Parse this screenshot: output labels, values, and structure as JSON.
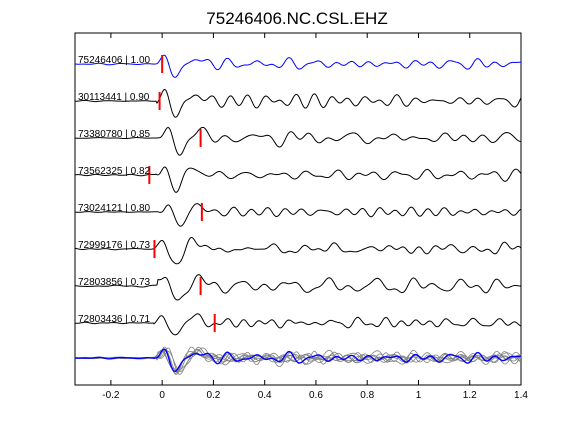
{
  "chart_data": {
    "type": "line",
    "title": "75246406.NC.CSL.EHZ",
    "xlabel": "",
    "ylabel": "",
    "xlim": [
      -0.34,
      1.4
    ],
    "x_ticks": [
      "-0.2",
      "0",
      "0.2",
      "0.4",
      "0.6",
      "0.8",
      "1",
      "1.2",
      "1.4"
    ],
    "x_tick_values": [
      -0.2,
      0,
      0.2,
      0.4,
      0.6,
      0.8,
      1.0,
      1.2,
      1.4
    ],
    "grid": false,
    "traces": [
      {
        "label": "75246406 | 1.00",
        "pick_time": 0.0,
        "color": "#0000ff"
      },
      {
        "label": "30113441 | 0.90",
        "pick_time": -0.01,
        "color": "#000000"
      },
      {
        "label": "73380780 | 0.85",
        "pick_time": 0.15,
        "color": "#000000"
      },
      {
        "label": "73562325 | 0.82",
        "pick_time": -0.05,
        "color": "#000000"
      },
      {
        "label": "73024121 | 0.80",
        "pick_time": 0.155,
        "color": "#000000"
      },
      {
        "label": "72999176 | 0.73",
        "pick_time": -0.03,
        "color": "#000000"
      },
      {
        "label": "72803856 | 0.73",
        "pick_time": 0.15,
        "color": "#000000"
      },
      {
        "label": "72803436 | 0.71",
        "pick_time": 0.205,
        "color": "#000000"
      }
    ],
    "stack_colors": {
      "reference": "#0000ff",
      "others": "#808080"
    },
    "pick_color": "#ff0000"
  }
}
